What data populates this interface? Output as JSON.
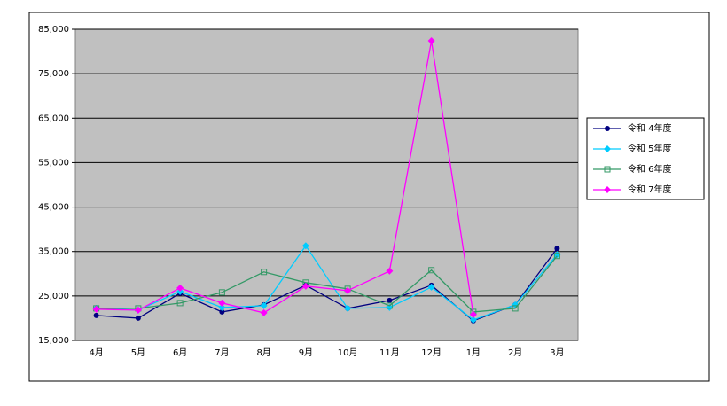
{
  "chart_data": {
    "type": "line",
    "categories": [
      "4月",
      "5月",
      "6月",
      "7月",
      "8月",
      "9月",
      "10月",
      "11月",
      "12月",
      "1月",
      "2月",
      "3月"
    ],
    "series": [
      {
        "name": "令和 4年度",
        "color": "#000080",
        "marker": "circle",
        "values": [
          20600,
          20000,
          25600,
          21400,
          23000,
          27400,
          22200,
          24000,
          27400,
          19400,
          23000,
          35700
        ]
      },
      {
        "name": "令和 5年度",
        "color": "#00ccff",
        "marker": "diamond",
        "values": [
          22200,
          21800,
          26000,
          22400,
          22800,
          36300,
          22200,
          22400,
          27000,
          19600,
          23000,
          34300
        ]
      },
      {
        "name": "令和 6年度",
        "color": "#339966",
        "marker": "square-open",
        "values": [
          22200,
          22200,
          23400,
          25800,
          30400,
          28000,
          26600,
          22800,
          30800,
          21400,
          22200,
          34000
        ]
      },
      {
        "name": "令和 7年度",
        "color": "#ff00ff",
        "marker": "diamond",
        "values": [
          22000,
          21800,
          26800,
          23400,
          21200,
          27200,
          26200,
          30600,
          82400,
          20800,
          null,
          null
        ]
      }
    ],
    "ylim": [
      15000,
      85000
    ],
    "yticks": [
      {
        "value": 15000,
        "label": "15,000"
      },
      {
        "value": 25000,
        "label": "25,000"
      },
      {
        "value": 35000,
        "label": "35,000"
      },
      {
        "value": 45000,
        "label": "45,000"
      },
      {
        "value": 55000,
        "label": "55,000"
      },
      {
        "value": 65000,
        "label": "65,000"
      },
      {
        "value": 75000,
        "label": "75,000"
      },
      {
        "value": 85000,
        "label": "85,000"
      }
    ],
    "grid": true,
    "legend": "right"
  }
}
